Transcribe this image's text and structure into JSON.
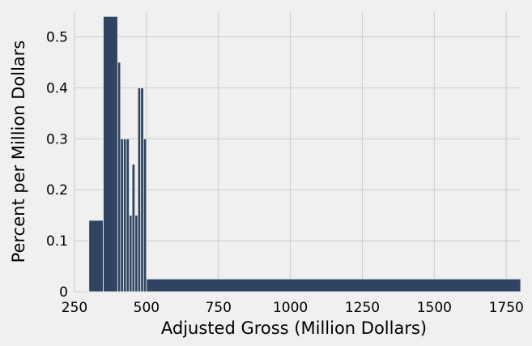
{
  "chart_data": {
    "type": "bar",
    "title": "",
    "xlabel": "Adjusted Gross (Million Dollars)",
    "ylabel": "Percent per Million Dollars",
    "xlim": [
      250,
      1800
    ],
    "ylim": [
      0,
      0.55
    ],
    "xticks": [
      250,
      500,
      750,
      1000,
      1250,
      1500,
      1750
    ],
    "yticks": [
      0,
      0.1,
      0.2,
      0.3,
      0.4,
      0.5
    ],
    "grid": true,
    "bar_color": "#2f4462",
    "background_color": "#f0f0f0",
    "grid_color": "#cbcbcb",
    "series": [
      {
        "values": [
          {
            "start": 300,
            "end": 350,
            "value": 0.14
          },
          {
            "start": 350,
            "end": 400,
            "value": 0.54
          },
          {
            "start": 400,
            "end": 410,
            "value": 0.45
          },
          {
            "start": 410,
            "end": 420,
            "value": 0.3
          },
          {
            "start": 420,
            "end": 430,
            "value": 0.3
          },
          {
            "start": 430,
            "end": 440,
            "value": 0.3
          },
          {
            "start": 440,
            "end": 450,
            "value": 0.15
          },
          {
            "start": 450,
            "end": 460,
            "value": 0.25
          },
          {
            "start": 460,
            "end": 470,
            "value": 0.15
          },
          {
            "start": 470,
            "end": 480,
            "value": 0.4
          },
          {
            "start": 480,
            "end": 490,
            "value": 0.4
          },
          {
            "start": 490,
            "end": 500,
            "value": 0.3
          },
          {
            "start": 500,
            "end": 1800,
            "value": 0.025
          }
        ]
      }
    ]
  }
}
